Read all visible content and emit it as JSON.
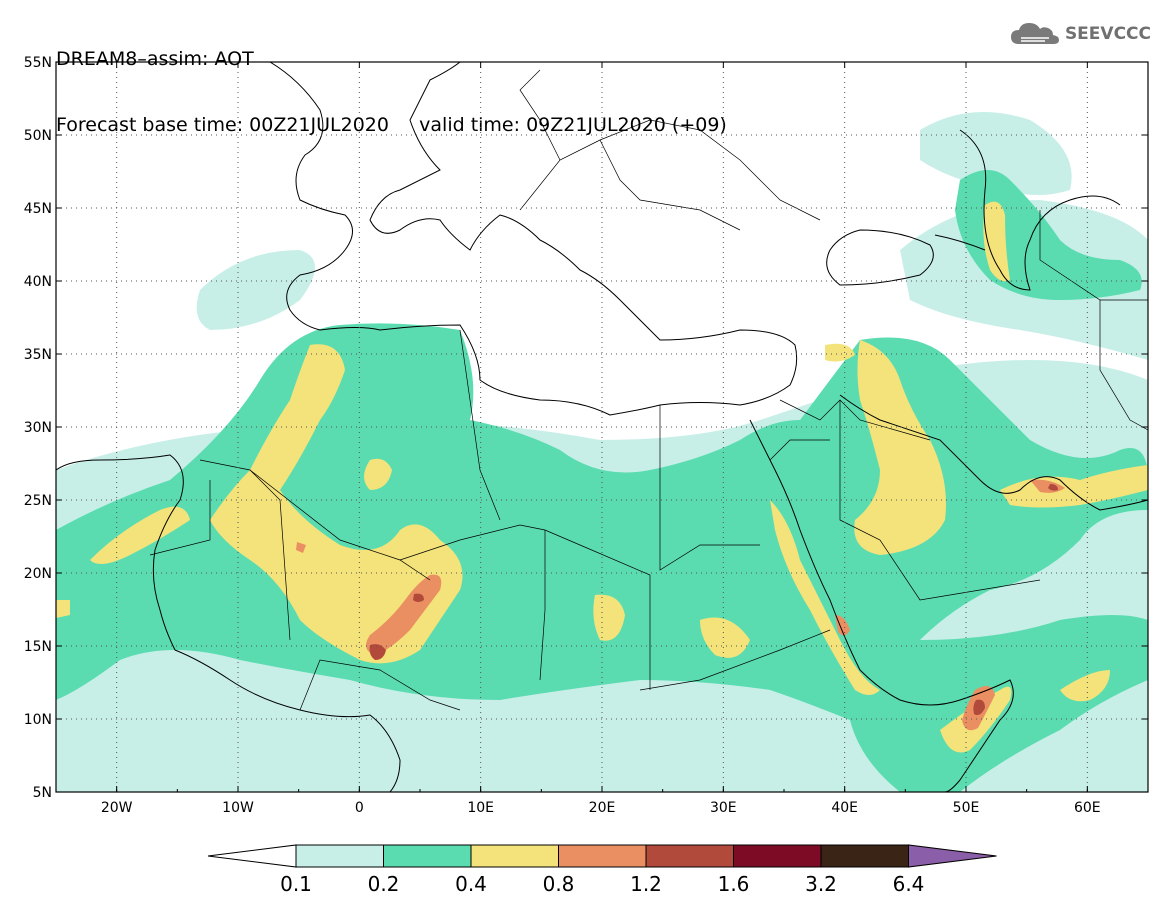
{
  "header": {
    "line1": "DREAM8–assim: AOT",
    "line2": "Forecast base time: 00Z21JUL2020     valid time: 09Z21JUL2020 (+09)"
  },
  "logo": {
    "text": "SEEVCCC",
    "icon": "cloud-icon"
  },
  "map": {
    "lat_labels": [
      "55N",
      "50N",
      "45N",
      "40N",
      "35N",
      "30N",
      "25N",
      "20N",
      "15N",
      "10N",
      "5N"
    ],
    "lon_labels": [
      "20W",
      "10W",
      "0",
      "10E",
      "20E",
      "30E",
      "40E",
      "50E",
      "60E"
    ],
    "lat_range": [
      5,
      55
    ],
    "lon_range": [
      -25,
      65
    ],
    "grid": "dotted"
  },
  "colorbar": {
    "levels": [
      "0.1",
      "0.2",
      "0.4",
      "0.8",
      "1.2",
      "1.6",
      "3.2",
      "6.4"
    ],
    "colors": [
      "#c7efe8",
      "#5bdcb0",
      "#f4e37a",
      "#ea8f62",
      "#b24a3c",
      "#7d0b26",
      "#3a2416",
      "#8a5ea8"
    ],
    "under_color": "#ffffff"
  }
}
